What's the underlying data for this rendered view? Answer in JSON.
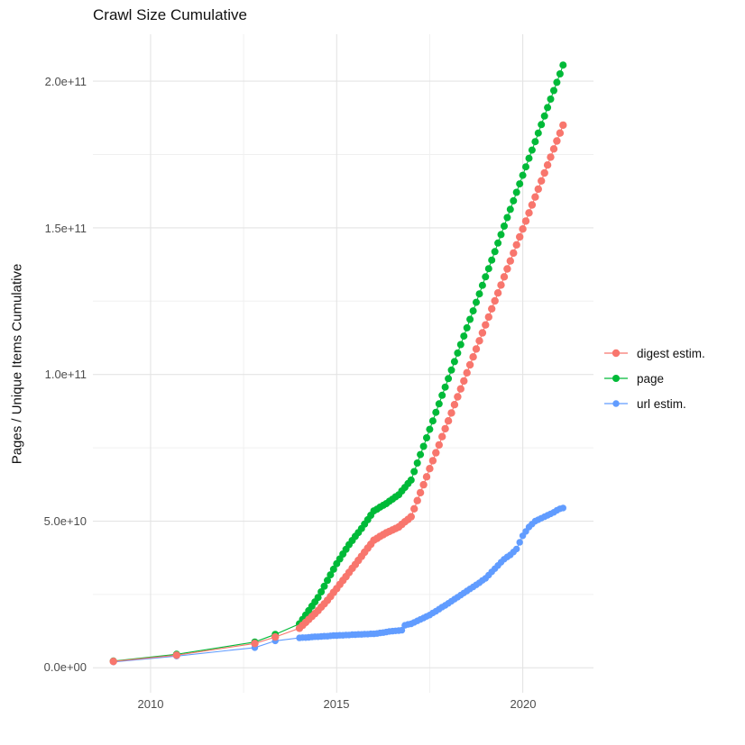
{
  "title": "Crawl Size Cumulative",
  "axes": {
    "y_label": "Pages / Unique Items Cumulative",
    "y_ticks": [
      "0.0e+00",
      "5.0e+10",
      "1.0e+11",
      "1.5e+11",
      "2.0e+11"
    ],
    "x_ticks": [
      "2010",
      "2015",
      "2020"
    ]
  },
  "legend": [
    {
      "label": "digest estim.",
      "color": "#F8766D"
    },
    {
      "label": "page",
      "color": "#00BA38"
    },
    {
      "label": "url estim.",
      "color": "#619CFF"
    }
  ],
  "chart_data": {
    "type": "line",
    "title": "Crawl Size Cumulative",
    "xlabel": "",
    "ylabel": "Pages / Unique Items Cumulative",
    "xlim": [
      2008.45,
      2021.9
    ],
    "ylim": [
      -8500000000.0,
      216000000000.0
    ],
    "x_major_ticks": [
      2010,
      2015,
      2020
    ],
    "x_minor_ticks": [
      2012.5,
      2017.5
    ],
    "y_major_ticks": [
      0,
      50000000000.0,
      100000000000.0,
      150000000000.0,
      200000000000.0
    ],
    "y_minor_ticks": [
      25000000000.0,
      75000000000.0,
      125000000000.0,
      175000000000.0
    ],
    "grid": true,
    "legend_position": "right",
    "background": "#ffffff",
    "grid_major_color": "#e4e4e4",
    "grid_minor_color": "#f0f0f0",
    "value_unit_note": "point values are billions (1e9) of pages / unique items, cumulative",
    "series": [
      {
        "name": "digest estim.",
        "color": "#F8766D",
        "radius": 4.2,
        "points_early": [
          [
            2009.0,
            2.2
          ],
          [
            2010.7,
            4.3
          ],
          [
            2012.8,
            8.3
          ],
          [
            2013.35,
            10.5
          ]
        ],
        "monthly": {
          "start_year": 2014.0,
          "step_months": 1,
          "values_billions": [
            13.5,
            14.5,
            15.5,
            16.5,
            17.5,
            18.5,
            19.5,
            20.7,
            21.8,
            23.0,
            24.3,
            25.7,
            27.0,
            28.4,
            29.8,
            31.1,
            32.5,
            33.9,
            35.2,
            36.6,
            38.0,
            39.4,
            40.8,
            42.1,
            43.5,
            44.1,
            44.8,
            45.4,
            46.0,
            46.5,
            47.0,
            47.5,
            48.0,
            48.9,
            49.8,
            50.6,
            51.5,
            54.2,
            57.0,
            59.7,
            62.4,
            65.1,
            67.9,
            70.6,
            73.3,
            76.0,
            78.8,
            81.5,
            84.2,
            86.9,
            89.7,
            92.4,
            95.1,
            97.8,
            100.6,
            103.3,
            106.0,
            108.7,
            111.5,
            114.2,
            116.9,
            119.6,
            122.4,
            125.1,
            127.8,
            130.5,
            133.3,
            136.0,
            138.7,
            141.4,
            144.2,
            146.9,
            149.6,
            152.3,
            155.1,
            157.8,
            160.5,
            163.2,
            166.0,
            168.7,
            171.4,
            174.1,
            176.9,
            179.6,
            182.3,
            185.0
          ]
        }
      },
      {
        "name": "page",
        "color": "#00BA38",
        "radius": 4.0,
        "points_early": [
          [
            2009.0,
            2.3
          ],
          [
            2010.7,
            4.6
          ],
          [
            2012.8,
            8.8
          ],
          [
            2013.35,
            11.4
          ]
        ],
        "monthly": {
          "start_year": 2014.0,
          "step_months": 1,
          "values_billions": [
            15.0,
            16.5,
            18.0,
            19.5,
            21.0,
            22.5,
            24.0,
            25.9,
            27.8,
            29.8,
            31.7,
            33.6,
            35.5,
            37.1,
            38.8,
            40.4,
            42.0,
            43.4,
            44.8,
            46.1,
            47.5,
            49.0,
            50.5,
            52.0,
            53.5,
            54.1,
            54.8,
            55.4,
            56.0,
            56.8,
            57.5,
            58.3,
            59.0,
            60.3,
            61.5,
            62.8,
            64.0,
            66.9,
            69.8,
            72.7,
            75.5,
            78.4,
            81.3,
            84.2,
            87.1,
            90.0,
            92.9,
            95.7,
            98.6,
            101.5,
            104.4,
            107.3,
            110.2,
            113.1,
            115.9,
            118.8,
            121.7,
            124.6,
            127.5,
            130.4,
            133.3,
            136.1,
            139.0,
            141.9,
            144.8,
            147.7,
            150.6,
            153.5,
            156.3,
            159.2,
            162.1,
            165.0,
            167.9,
            170.8,
            173.7,
            176.5,
            179.4,
            182.3,
            185.2,
            188.1,
            191.0,
            193.9,
            196.8,
            199.6,
            202.5,
            205.5
          ]
        }
      },
      {
        "name": "url estim.",
        "color": "#619CFF",
        "radius": 3.7,
        "points_early": [
          [
            2009.0,
            2.0
          ],
          [
            2010.7,
            4.0
          ],
          [
            2012.8,
            6.9
          ],
          [
            2013.35,
            9.2
          ]
        ],
        "monthly": {
          "start_year": 2014.0,
          "step_months": 1,
          "values_billions": [
            10.2,
            10.3,
            10.3,
            10.4,
            10.5,
            10.6,
            10.6,
            10.7,
            10.8,
            10.8,
            10.9,
            11.0,
            11.0,
            11.1,
            11.1,
            11.2,
            11.2,
            11.3,
            11.3,
            11.4,
            11.4,
            11.5,
            11.5,
            11.6,
            11.6,
            11.7,
            11.9,
            12.0,
            12.2,
            12.4,
            12.5,
            12.6,
            12.7,
            12.8,
            14.5,
            14.8,
            15.0,
            15.5,
            16.0,
            16.5,
            17.0,
            17.5,
            18.0,
            18.7,
            19.3,
            20.0,
            20.7,
            21.3,
            22.0,
            22.7,
            23.4,
            24.1,
            24.8,
            25.5,
            26.2,
            26.9,
            27.6,
            28.3,
            29.0,
            29.8,
            30.5,
            31.6,
            32.7,
            33.8,
            34.9,
            36.0,
            37.0,
            37.8,
            38.5,
            39.5,
            40.5,
            42.8,
            45.0,
            46.5,
            48.0,
            49.0,
            50.0,
            50.5,
            51.0,
            51.5,
            52.0,
            52.5,
            53.0,
            53.7,
            54.2,
            54.5
          ]
        }
      }
    ]
  }
}
